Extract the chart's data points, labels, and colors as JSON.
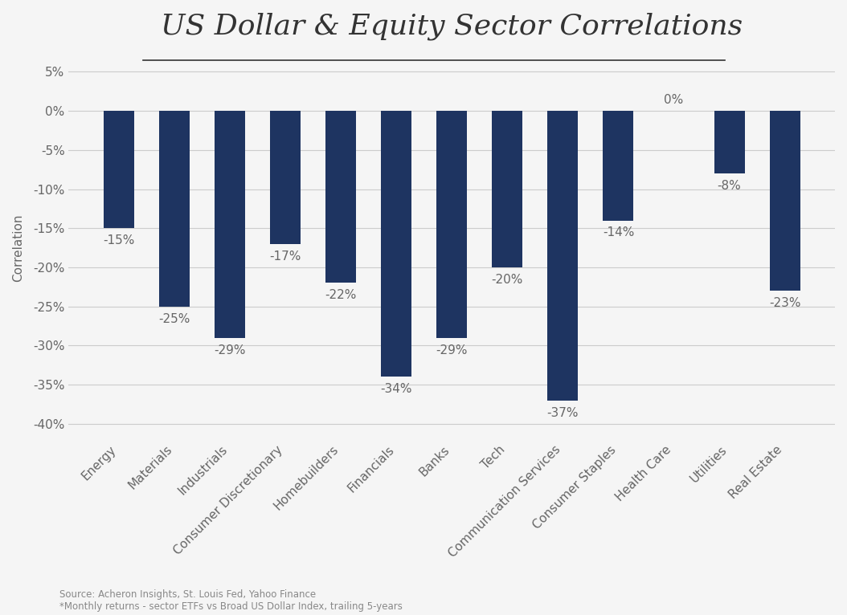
{
  "title": "US Dollar & Equity Sector Correlations",
  "categories": [
    "Energy",
    "Materials",
    "Industrials",
    "Consumer Discretionary",
    "Homebuilders",
    "Financials",
    "Banks",
    "Tech",
    "Communication Services",
    "Consumer Staples",
    "Health Care",
    "Utilities",
    "Real Estate"
  ],
  "values": [
    -15,
    -25,
    -29,
    -17,
    -22,
    -34,
    -29,
    -20,
    -37,
    -14,
    0,
    -8,
    -23
  ],
  "bar_color": "#1e3461",
  "ylabel": "Correlation",
  "ylim": [
    -42,
    7
  ],
  "yticks": [
    5,
    0,
    -5,
    -10,
    -15,
    -20,
    -25,
    -30,
    -35,
    -40
  ],
  "ytick_labels": [
    "5%",
    "0%",
    "-5%",
    "-10%",
    "-15%",
    "-20%",
    "-25%",
    "-30%",
    "-35%",
    "-40%"
  ],
  "source_line1": "Source: Acheron Insights, St. Louis Fed, Yahoo Finance",
  "source_line2": "*Monthly returns - sector ETFs vs Broad US Dollar Index, trailing 5-years",
  "background_color": "#f5f5f5",
  "title_fontsize": 26,
  "tick_fontsize": 11,
  "bar_label_fontsize": 11,
  "bar_width": 0.55
}
